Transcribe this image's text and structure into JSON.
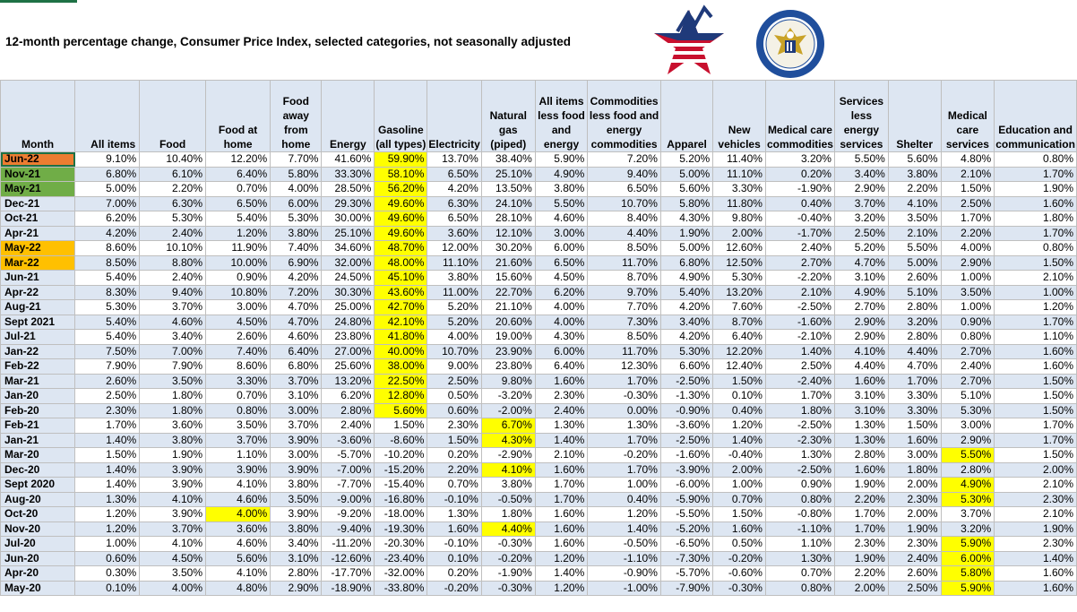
{
  "title": "12-month percentage change, Consumer Price Index, selected categories, not seasonally adjusted",
  "colors": {
    "header_bg": "#dde6f2",
    "highlight": "#ffff00",
    "orange": "#ed7d31",
    "green": "#70ad47",
    "amber": "#ffc000"
  },
  "logos": [
    "bls-star-logo",
    "department-of-labor-seal"
  ],
  "columns": [
    "Month",
    "All items",
    "Food",
    "Food at home",
    "Food away from home",
    "Energy",
    "Gasoline (all types)",
    "Electricity",
    "Natural gas (piped)",
    "All items less food and energy",
    "Commodities less food and energy commodities",
    "Apparel",
    "New vehicles",
    "Medical care commodities",
    "Services less energy services",
    "Shelter",
    "Medical care services",
    "Education and communication"
  ],
  "rows": [
    [
      "Jun-22",
      "9.10%",
      "10.40%",
      "12.20%",
      "7.70%",
      "41.60%",
      "59.90%",
      "13.70%",
      "38.40%",
      "5.90%",
      "7.20%",
      "5.20%",
      "11.40%",
      "3.20%",
      "5.50%",
      "5.60%",
      "4.80%",
      "0.80%"
    ],
    [
      "Nov-21",
      "6.80%",
      "6.10%",
      "6.40%",
      "5.80%",
      "33.30%",
      "58.10%",
      "6.50%",
      "25.10%",
      "4.90%",
      "9.40%",
      "5.00%",
      "11.10%",
      "0.20%",
      "3.40%",
      "3.80%",
      "2.10%",
      "1.70%"
    ],
    [
      "May-21",
      "5.00%",
      "2.20%",
      "0.70%",
      "4.00%",
      "28.50%",
      "56.20%",
      "4.20%",
      "13.50%",
      "3.80%",
      "6.50%",
      "5.60%",
      "3.30%",
      "-1.90%",
      "2.90%",
      "2.20%",
      "1.50%",
      "1.90%"
    ],
    [
      "Dec-21",
      "7.00%",
      "6.30%",
      "6.50%",
      "6.00%",
      "29.30%",
      "49.60%",
      "6.30%",
      "24.10%",
      "5.50%",
      "10.70%",
      "5.80%",
      "11.80%",
      "0.40%",
      "3.70%",
      "4.10%",
      "2.50%",
      "1.60%"
    ],
    [
      "Oct-21",
      "6.20%",
      "5.30%",
      "5.40%",
      "5.30%",
      "30.00%",
      "49.60%",
      "6.50%",
      "28.10%",
      "4.60%",
      "8.40%",
      "4.30%",
      "9.80%",
      "-0.40%",
      "3.20%",
      "3.50%",
      "1.70%",
      "1.80%"
    ],
    [
      "Apr-21",
      "4.20%",
      "2.40%",
      "1.20%",
      "3.80%",
      "25.10%",
      "49.60%",
      "3.60%",
      "12.10%",
      "3.00%",
      "4.40%",
      "1.90%",
      "2.00%",
      "-1.70%",
      "2.50%",
      "2.10%",
      "2.20%",
      "1.70%"
    ],
    [
      "May-22",
      "8.60%",
      "10.10%",
      "11.90%",
      "7.40%",
      "34.60%",
      "48.70%",
      "12.00%",
      "30.20%",
      "6.00%",
      "8.50%",
      "5.00%",
      "12.60%",
      "2.40%",
      "5.20%",
      "5.50%",
      "4.00%",
      "0.80%"
    ],
    [
      "Mar-22",
      "8.50%",
      "8.80%",
      "10.00%",
      "6.90%",
      "32.00%",
      "48.00%",
      "11.10%",
      "21.60%",
      "6.50%",
      "11.70%",
      "6.80%",
      "12.50%",
      "2.70%",
      "4.70%",
      "5.00%",
      "2.90%",
      "1.50%"
    ],
    [
      "Jun-21",
      "5.40%",
      "2.40%",
      "0.90%",
      "4.20%",
      "24.50%",
      "45.10%",
      "3.80%",
      "15.60%",
      "4.50%",
      "8.70%",
      "4.90%",
      "5.30%",
      "-2.20%",
      "3.10%",
      "2.60%",
      "1.00%",
      "2.10%"
    ],
    [
      "Apr-22",
      "8.30%",
      "9.40%",
      "10.80%",
      "7.20%",
      "30.30%",
      "43.60%",
      "11.00%",
      "22.70%",
      "6.20%",
      "9.70%",
      "5.40%",
      "13.20%",
      "2.10%",
      "4.90%",
      "5.10%",
      "3.50%",
      "1.00%"
    ],
    [
      "Aug-21",
      "5.30%",
      "3.70%",
      "3.00%",
      "4.70%",
      "25.00%",
      "42.70%",
      "5.20%",
      "21.10%",
      "4.00%",
      "7.70%",
      "4.20%",
      "7.60%",
      "-2.50%",
      "2.70%",
      "2.80%",
      "1.00%",
      "1.20%"
    ],
    [
      "Sept 2021",
      "5.40%",
      "4.60%",
      "4.50%",
      "4.70%",
      "24.80%",
      "42.10%",
      "5.20%",
      "20.60%",
      "4.00%",
      "7.30%",
      "3.40%",
      "8.70%",
      "-1.60%",
      "2.90%",
      "3.20%",
      "0.90%",
      "1.70%"
    ],
    [
      "Jul-21",
      "5.40%",
      "3.40%",
      "2.60%",
      "4.60%",
      "23.80%",
      "41.80%",
      "4.00%",
      "19.00%",
      "4.30%",
      "8.50%",
      "4.20%",
      "6.40%",
      "-2.10%",
      "2.90%",
      "2.80%",
      "0.80%",
      "1.10%"
    ],
    [
      "Jan-22",
      "7.50%",
      "7.00%",
      "7.40%",
      "6.40%",
      "27.00%",
      "40.00%",
      "10.70%",
      "23.90%",
      "6.00%",
      "11.70%",
      "5.30%",
      "12.20%",
      "1.40%",
      "4.10%",
      "4.40%",
      "2.70%",
      "1.60%"
    ],
    [
      "Feb-22",
      "7.90%",
      "7.90%",
      "8.60%",
      "6.80%",
      "25.60%",
      "38.00%",
      "9.00%",
      "23.80%",
      "6.40%",
      "12.30%",
      "6.60%",
      "12.40%",
      "2.50%",
      "4.40%",
      "4.70%",
      "2.40%",
      "1.60%"
    ],
    [
      "Mar-21",
      "2.60%",
      "3.50%",
      "3.30%",
      "3.70%",
      "13.20%",
      "22.50%",
      "2.50%",
      "9.80%",
      "1.60%",
      "1.70%",
      "-2.50%",
      "1.50%",
      "-2.40%",
      "1.60%",
      "1.70%",
      "2.70%",
      "1.50%"
    ],
    [
      "Jan-20",
      "2.50%",
      "1.80%",
      "0.70%",
      "3.10%",
      "6.20%",
      "12.80%",
      "0.50%",
      "-3.20%",
      "2.30%",
      "-0.30%",
      "-1.30%",
      "0.10%",
      "1.70%",
      "3.10%",
      "3.30%",
      "5.10%",
      "1.50%"
    ],
    [
      "Feb-20",
      "2.30%",
      "1.80%",
      "0.80%",
      "3.00%",
      "2.80%",
      "5.60%",
      "0.60%",
      "-2.00%",
      "2.40%",
      "0.00%",
      "-0.90%",
      "0.40%",
      "1.80%",
      "3.10%",
      "3.30%",
      "5.30%",
      "1.50%"
    ],
    [
      "Feb-21",
      "1.70%",
      "3.60%",
      "3.50%",
      "3.70%",
      "2.40%",
      "1.50%",
      "2.30%",
      "6.70%",
      "1.30%",
      "1.30%",
      "-3.60%",
      "1.20%",
      "-2.50%",
      "1.30%",
      "1.50%",
      "3.00%",
      "1.70%"
    ],
    [
      "Jan-21",
      "1.40%",
      "3.80%",
      "3.70%",
      "3.90%",
      "-3.60%",
      "-8.60%",
      "1.50%",
      "4.30%",
      "1.40%",
      "1.70%",
      "-2.50%",
      "1.40%",
      "-2.30%",
      "1.30%",
      "1.60%",
      "2.90%",
      "1.70%"
    ],
    [
      "Mar-20",
      "1.50%",
      "1.90%",
      "1.10%",
      "3.00%",
      "-5.70%",
      "-10.20%",
      "0.20%",
      "-2.90%",
      "2.10%",
      "-0.20%",
      "-1.60%",
      "-0.40%",
      "1.30%",
      "2.80%",
      "3.00%",
      "5.50%",
      "1.50%"
    ],
    [
      "Dec-20",
      "1.40%",
      "3.90%",
      "3.90%",
      "3.90%",
      "-7.00%",
      "-15.20%",
      "2.20%",
      "4.10%",
      "1.60%",
      "1.70%",
      "-3.90%",
      "2.00%",
      "-2.50%",
      "1.60%",
      "1.80%",
      "2.80%",
      "2.00%"
    ],
    [
      "Sept 2020",
      "1.40%",
      "3.90%",
      "4.10%",
      "3.80%",
      "-7.70%",
      "-15.40%",
      "0.70%",
      "3.80%",
      "1.70%",
      "1.00%",
      "-6.00%",
      "1.00%",
      "0.90%",
      "1.90%",
      "2.00%",
      "4.90%",
      "2.10%"
    ],
    [
      "Aug-20",
      "1.30%",
      "4.10%",
      "4.60%",
      "3.50%",
      "-9.00%",
      "-16.80%",
      "-0.10%",
      "-0.50%",
      "1.70%",
      "0.40%",
      "-5.90%",
      "0.70%",
      "0.80%",
      "2.20%",
      "2.30%",
      "5.30%",
      "2.30%"
    ],
    [
      "Oct-20",
      "1.20%",
      "3.90%",
      "4.00%",
      "3.90%",
      "-9.20%",
      "-18.00%",
      "1.30%",
      "1.80%",
      "1.60%",
      "1.20%",
      "-5.50%",
      "1.50%",
      "-0.80%",
      "1.70%",
      "2.00%",
      "3.70%",
      "2.10%"
    ],
    [
      "Nov-20",
      "1.20%",
      "3.70%",
      "3.60%",
      "3.80%",
      "-9.40%",
      "-19.30%",
      "1.60%",
      "4.40%",
      "1.60%",
      "1.40%",
      "-5.20%",
      "1.60%",
      "-1.10%",
      "1.70%",
      "1.90%",
      "3.20%",
      "1.90%"
    ],
    [
      "Jul-20",
      "1.00%",
      "4.10%",
      "4.60%",
      "3.40%",
      "-11.20%",
      "-20.30%",
      "-0.10%",
      "-0.30%",
      "1.60%",
      "-0.50%",
      "-6.50%",
      "0.50%",
      "1.10%",
      "2.30%",
      "2.30%",
      "5.90%",
      "2.30%"
    ],
    [
      "Jun-20",
      "0.60%",
      "4.50%",
      "5.60%",
      "3.10%",
      "-12.60%",
      "-23.40%",
      "0.10%",
      "-0.20%",
      "1.20%",
      "-1.10%",
      "-7.30%",
      "-0.20%",
      "1.30%",
      "1.90%",
      "2.40%",
      "6.00%",
      "1.40%"
    ],
    [
      "Apr-20",
      "0.30%",
      "3.50%",
      "4.10%",
      "2.80%",
      "-17.70%",
      "-32.00%",
      "0.20%",
      "-1.90%",
      "1.40%",
      "-0.90%",
      "-5.70%",
      "-0.60%",
      "0.70%",
      "2.20%",
      "2.60%",
      "5.80%",
      "1.60%"
    ],
    [
      "May-20",
      "0.10%",
      "4.00%",
      "4.80%",
      "2.90%",
      "-18.90%",
      "-33.80%",
      "-0.20%",
      "-0.30%",
      "1.20%",
      "-1.00%",
      "-7.90%",
      "-0.30%",
      "0.80%",
      "2.00%",
      "2.50%",
      "5.90%",
      "1.60%"
    ]
  ],
  "month_style": {
    "0": "orange",
    "1": "green",
    "2": "green",
    "6": "amber",
    "7": "amber"
  },
  "highlights": [
    [
      0,
      6
    ],
    [
      1,
      6
    ],
    [
      2,
      6
    ],
    [
      3,
      6
    ],
    [
      4,
      6
    ],
    [
      5,
      6
    ],
    [
      6,
      6
    ],
    [
      7,
      6
    ],
    [
      8,
      6
    ],
    [
      9,
      6
    ],
    [
      10,
      6
    ],
    [
      11,
      6
    ],
    [
      12,
      6
    ],
    [
      13,
      6
    ],
    [
      14,
      6
    ],
    [
      15,
      6
    ],
    [
      16,
      6
    ],
    [
      17,
      6
    ],
    [
      18,
      8
    ],
    [
      19,
      8
    ],
    [
      21,
      8
    ],
    [
      25,
      8
    ],
    [
      24,
      3
    ],
    [
      20,
      16
    ],
    [
      22,
      16
    ],
    [
      23,
      16
    ],
    [
      26,
      16
    ],
    [
      27,
      16
    ],
    [
      28,
      16
    ],
    [
      29,
      16
    ]
  ]
}
